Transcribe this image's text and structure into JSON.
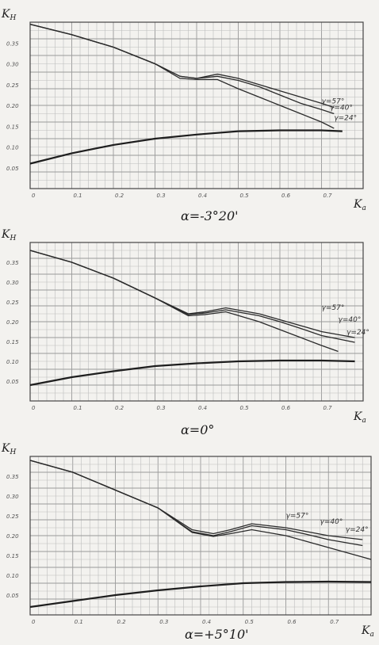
{
  "chart_data": [
    {
      "type": "line",
      "caption": "α=-3°20'",
      "xlabel": "K",
      "xlabel_sub": "a",
      "ylabel": "K",
      "ylabel_sub": "H",
      "xlim": [
        0,
        0.8
      ],
      "ylim": [
        0,
        0.4
      ],
      "x_ticks": [
        "0",
        "0.1",
        "0.2",
        "0.3",
        "0.4",
        "0.5",
        "0.6",
        "0.7"
      ],
      "y_ticks": [
        "0.05",
        "0.10",
        "0.15",
        "0.20",
        "0.25",
        "0.30",
        "0.35"
      ],
      "grid": true,
      "series": [
        {
          "name": "γ=57°",
          "label_xy": [
            0.7,
            0.205
          ],
          "x": [
            0,
            0.1,
            0.2,
            0.3,
            0.36,
            0.4,
            0.45,
            0.5,
            0.55,
            0.6,
            0.65,
            0.7,
            0.73
          ],
          "y": [
            0.395,
            0.37,
            0.34,
            0.3,
            0.27,
            0.265,
            0.275,
            0.265,
            0.25,
            0.235,
            0.22,
            0.205,
            0.195
          ]
        },
        {
          "name": "γ=40°",
          "label_xy": [
            0.72,
            0.19
          ],
          "x": [
            0,
            0.1,
            0.2,
            0.3,
            0.36,
            0.4,
            0.45,
            0.5,
            0.55,
            0.6,
            0.65,
            0.7,
            0.73
          ],
          "y": [
            0.395,
            0.37,
            0.34,
            0.3,
            0.27,
            0.265,
            0.27,
            0.26,
            0.245,
            0.225,
            0.205,
            0.19,
            0.18
          ]
        },
        {
          "name": "γ=24°",
          "label_xy": [
            0.73,
            0.165
          ],
          "x": [
            0,
            0.1,
            0.2,
            0.3,
            0.36,
            0.4,
            0.45,
            0.5,
            0.55,
            0.6,
            0.65,
            0.7,
            0.73
          ],
          "y": [
            0.395,
            0.37,
            0.34,
            0.3,
            0.265,
            0.262,
            0.262,
            0.24,
            0.22,
            0.2,
            0.18,
            0.16,
            0.145
          ]
        },
        {
          "name": "",
          "thick": true,
          "x": [
            0,
            0.1,
            0.2,
            0.3,
            0.4,
            0.5,
            0.6,
            0.7,
            0.75
          ],
          "y": [
            0.06,
            0.085,
            0.105,
            0.12,
            0.13,
            0.138,
            0.14,
            0.14,
            0.138
          ]
        }
      ]
    },
    {
      "type": "line",
      "caption": "α=0°",
      "xlabel": "K",
      "xlabel_sub": "a",
      "ylabel": "K",
      "ylabel_sub": "H",
      "xlim": [
        0,
        0.8
      ],
      "ylim": [
        0,
        0.4
      ],
      "x_ticks": [
        "0",
        "0.1",
        "0.2",
        "0.3",
        "0.4",
        "0.5",
        "0.6",
        "0.7"
      ],
      "y_ticks": [
        "0.05",
        "0.10",
        "0.15",
        "0.20",
        "0.25",
        "0.30",
        "0.35"
      ],
      "grid": true,
      "series": [
        {
          "name": "γ=57°",
          "label_xy": [
            0.7,
            0.23
          ],
          "x": [
            0,
            0.1,
            0.2,
            0.3,
            0.38,
            0.42,
            0.47,
            0.55,
            0.6,
            0.65,
            0.7,
            0.78
          ],
          "y": [
            0.38,
            0.35,
            0.31,
            0.26,
            0.22,
            0.225,
            0.235,
            0.22,
            0.205,
            0.19,
            0.175,
            0.16
          ]
        },
        {
          "name": "γ=40°",
          "label_xy": [
            0.74,
            0.2
          ],
          "x": [
            0,
            0.1,
            0.2,
            0.3,
            0.38,
            0.42,
            0.47,
            0.55,
            0.6,
            0.65,
            0.7,
            0.78
          ],
          "y": [
            0.38,
            0.35,
            0.31,
            0.26,
            0.218,
            0.222,
            0.23,
            0.215,
            0.2,
            0.183,
            0.165,
            0.148
          ]
        },
        {
          "name": "γ=24°",
          "label_xy": [
            0.76,
            0.168
          ],
          "x": [
            0,
            0.1,
            0.2,
            0.3,
            0.38,
            0.42,
            0.47,
            0.55,
            0.6,
            0.65,
            0.7,
            0.74
          ],
          "y": [
            0.38,
            0.35,
            0.31,
            0.26,
            0.215,
            0.218,
            0.225,
            0.2,
            0.18,
            0.16,
            0.14,
            0.125
          ]
        },
        {
          "name": "",
          "thick": true,
          "x": [
            0,
            0.1,
            0.2,
            0.3,
            0.4,
            0.5,
            0.6,
            0.7,
            0.78
          ],
          "y": [
            0.04,
            0.06,
            0.075,
            0.088,
            0.095,
            0.1,
            0.102,
            0.102,
            0.1
          ]
        }
      ]
    },
    {
      "type": "line",
      "caption": "α=+5°10'",
      "xlabel": "K",
      "xlabel_sub": "a",
      "ylabel": "K",
      "ylabel_sub": "H",
      "xlim": [
        0,
        0.8
      ],
      "ylim": [
        0,
        0.4
      ],
      "x_ticks": [
        "0",
        "0.1",
        "0.2",
        "0.3",
        "0.4",
        "0.5",
        "0.6",
        "0.7"
      ],
      "y_ticks": [
        "0.05",
        "0.10",
        "0.15",
        "0.20",
        "0.25",
        "0.30",
        "0.35"
      ],
      "grid": true,
      "series": [
        {
          "name": "γ=57°",
          "label_xy": [
            0.6,
            0.245
          ],
          "x": [
            0,
            0.1,
            0.2,
            0.3,
            0.38,
            0.43,
            0.47,
            0.52,
            0.6,
            0.65,
            0.7,
            0.78
          ],
          "y": [
            0.39,
            0.36,
            0.315,
            0.27,
            0.215,
            0.205,
            0.215,
            0.23,
            0.22,
            0.21,
            0.2,
            0.19
          ]
        },
        {
          "name": "γ=40°",
          "label_xy": [
            0.68,
            0.23
          ],
          "x": [
            0,
            0.1,
            0.2,
            0.3,
            0.38,
            0.43,
            0.47,
            0.52,
            0.6,
            0.65,
            0.7,
            0.78
          ],
          "y": [
            0.39,
            0.36,
            0.315,
            0.27,
            0.21,
            0.2,
            0.21,
            0.225,
            0.215,
            0.203,
            0.19,
            0.175
          ]
        },
        {
          "name": "γ=24°",
          "label_xy": [
            0.74,
            0.21
          ],
          "x": [
            0,
            0.1,
            0.2,
            0.3,
            0.38,
            0.43,
            0.47,
            0.52,
            0.6,
            0.65,
            0.7,
            0.8
          ],
          "y": [
            0.39,
            0.36,
            0.315,
            0.27,
            0.208,
            0.198,
            0.205,
            0.215,
            0.2,
            0.185,
            0.17,
            0.14
          ]
        },
        {
          "name": "",
          "thick": true,
          "x": [
            0,
            0.1,
            0.2,
            0.3,
            0.4,
            0.5,
            0.6,
            0.7,
            0.8
          ],
          "y": [
            0.02,
            0.035,
            0.05,
            0.062,
            0.072,
            0.08,
            0.083,
            0.084,
            0.083
          ]
        }
      ]
    }
  ]
}
